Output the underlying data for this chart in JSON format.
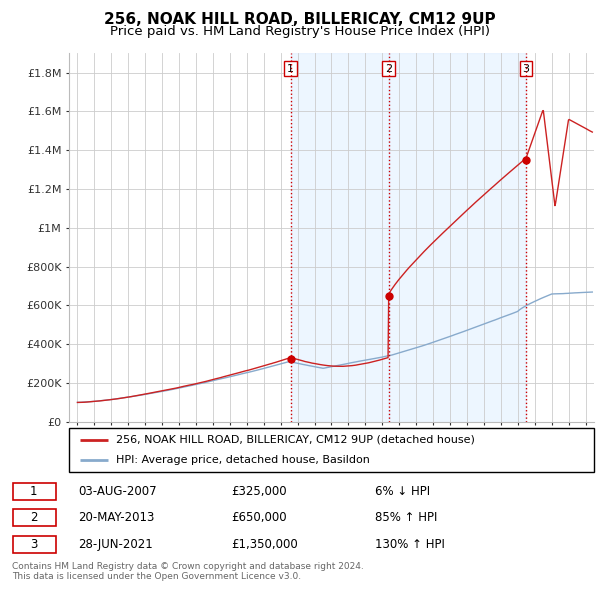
{
  "title": "256, NOAK HILL ROAD, BILLERICAY, CM12 9UP",
  "subtitle": "Price paid vs. HM Land Registry's House Price Index (HPI)",
  "ylabel_ticks": [
    "£0",
    "£200K",
    "£400K",
    "£600K",
    "£800K",
    "£1M",
    "£1.2M",
    "£1.4M",
    "£1.6M",
    "£1.8M"
  ],
  "ytick_vals": [
    0,
    200000,
    400000,
    600000,
    800000,
    1000000,
    1200000,
    1400000,
    1600000,
    1800000
  ],
  "ylim": [
    0,
    1900000
  ],
  "xlim_start": 1994.5,
  "xlim_end": 2025.5,
  "sale_dates": [
    2007.583,
    2013.38,
    2021.49
  ],
  "sale_prices": [
    325000,
    650000,
    1350000
  ],
  "sale_labels": [
    "1",
    "2",
    "3"
  ],
  "vline_color": "#cc0000",
  "red_line_color": "#cc2222",
  "blue_line_color": "#88aacc",
  "shade_color": "#ddeeff",
  "dot_color": "#cc0000",
  "legend_red_label": "256, NOAK HILL ROAD, BILLERICAY, CM12 9UP (detached house)",
  "legend_blue_label": "HPI: Average price, detached house, Basildon",
  "table_rows": [
    [
      "1",
      "03-AUG-2007",
      "£325,000",
      "6% ↓ HPI"
    ],
    [
      "2",
      "20-MAY-2013",
      "£650,000",
      "85% ↑ HPI"
    ],
    [
      "3",
      "28-JUN-2021",
      "£1,350,000",
      "130% ↑ HPI"
    ]
  ],
  "footer": "Contains HM Land Registry data © Crown copyright and database right 2024.\nThis data is licensed under the Open Government Licence v3.0.",
  "background_color": "#ffffff",
  "grid_color": "#cccccc"
}
